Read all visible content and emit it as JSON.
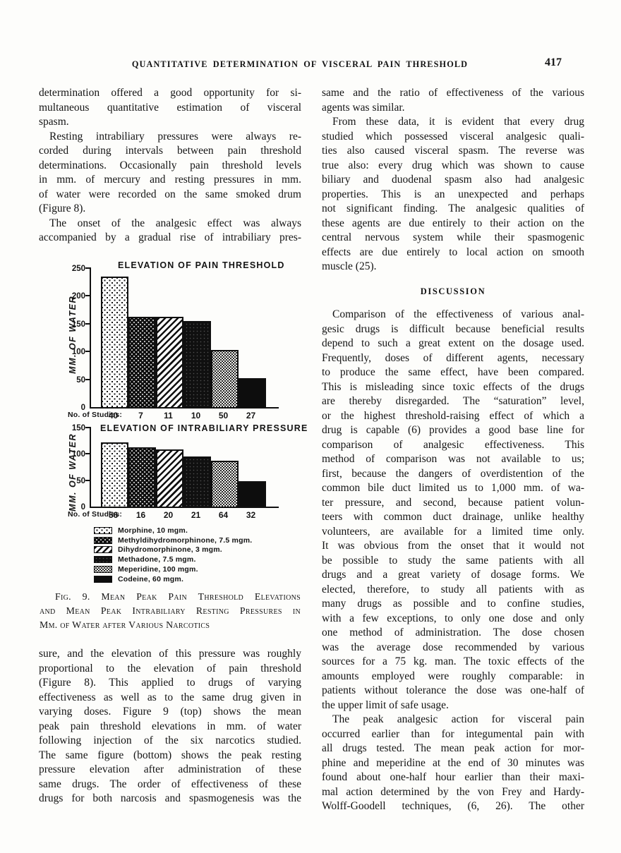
{
  "header": {
    "running_title": "QUANTITATIVE DETERMINATION OF VISCERAL PAIN THRESHOLD",
    "page_number": "417"
  },
  "left_column": {
    "paragraphs_top": [
      {
        "indent": false,
        "justify_last": false,
        "lines": [
          "determination offered a good opportunity for si-",
          "multaneous quantitative estimation of visceral",
          "spasm."
        ]
      },
      {
        "indent": true,
        "justify_last": false,
        "lines": [
          "Resting intrabiliary pressures were always re-",
          "corded during intervals between pain threshold",
          "determinations.  Occasionally pain threshold levels",
          "in mm. of mercury and resting pressures in mm.",
          "of water were recorded on the same smoked drum",
          "(Figure 8)."
        ]
      },
      {
        "indent": true,
        "justify_last": true,
        "lines": [
          "The onset of the analgesic effect was always",
          "accompanied by a gradual rise of intrabiliary pres-"
        ]
      }
    ],
    "paragraphs_bottom": [
      {
        "indent": false,
        "justify_last": true,
        "lines": [
          "sure, and the elevation of this pressure was roughly",
          "proportional to the elevation of pain threshold",
          "(Figure 8).  This applied to drugs of varying",
          "effectiveness as well as to the same drug given in",
          "varying doses.  Figure 9 (top) shows the mean",
          "peak pain threshold elevations in mm. of water",
          "following injection of the six narcotics studied.",
          "The same figure (bottom) shows the peak resting",
          "pressure elevation after administration of these",
          "same drugs.  The order of effectiveness of these",
          "drugs for both narcosis and spasmogenesis was the"
        ]
      }
    ]
  },
  "right_column": {
    "paragraphs_before_heading": [
      {
        "indent": false,
        "justify_last": false,
        "lines": [
          "same and the ratio of effectiveness of the various",
          "agents was similar."
        ]
      },
      {
        "indent": true,
        "justify_last": false,
        "lines": [
          "From these data, it is evident that every drug",
          "studied which possessed visceral analgesic quali-",
          "ties also caused visceral spasm.  The reverse was",
          "true also: every drug which was shown to cause",
          "biliary and duodenal spasm also had analgesic",
          "properties.  This is an unexpected and perhaps",
          "not significant finding.  The analgesic qualities of",
          "these agents are due entirely to their action on the",
          "central nervous system while their spasmogenic",
          "effects are due entirely to local action on smooth",
          "muscle (25)."
        ]
      }
    ],
    "section_heading": "DISCUSSION",
    "paragraphs_after_heading": [
      {
        "indent": true,
        "justify_last": false,
        "lines": [
          "Comparison of the effectiveness of various anal-",
          "gesic drugs is difficult because beneficial results",
          "depend to such a great extent on the dosage used.",
          "Frequently, doses of different agents, necessary",
          "to produce the same effect, have been compared.",
          "This is misleading since toxic effects of the drugs",
          "are thereby disregarded.  The “saturation” level,",
          "or the highest threshold-raising effect of which a",
          "drug is capable (6) provides a good base line for",
          "comparison of analgesic effectiveness.   This",
          "method of comparison was not available to us;",
          "first, because the dangers of overdistention of the",
          "common bile duct limited us to 1,000 mm. of wa-",
          "ter pressure, and second, because patient volun-",
          "teers with common duct drainage, unlike healthy",
          "volunteers, are available for a limited time only.",
          "It was obvious from the onset that it would not",
          "be possible to study the same patients with all",
          "drugs and a great variety of dosage forms.  We",
          "elected, therefore, to study all patients with as",
          "many drugs as possible and to confine studies,",
          "with a few exceptions, to only one dose and only",
          "one method of administration.  The dose chosen",
          "was the average dose recommended by various",
          "sources for a 75 kg. man.  The toxic effects of the",
          "amounts employed were roughly comparable: in",
          "patients without tolerance the dose was one-half of",
          "the upper limit of safe usage."
        ]
      },
      {
        "indent": true,
        "justify_last": true,
        "lines": [
          "The peak analgesic action for visceral pain",
          "occurred earlier than for integumental pain with",
          "all drugs tested.  The mean peak action for mor-",
          "phine and meperidine at the end of 30 minutes was",
          "found about one-half hour earlier than their maxi-",
          "mal action determined by the von Frey and Hardy-",
          "Wolff-Goodell techniques, (6, 26).  The other"
        ]
      }
    ]
  },
  "figure": {
    "caption": [
      {
        "indent": true,
        "justify_last": false,
        "lines": [
          "Fig. 9.  Mean Peak Pain Threshold Elevations",
          "and Mean Peak Intrabiliary Resting Pressures in",
          "Mm. of Water after Various Narcotics"
        ]
      }
    ],
    "legend_items": [
      {
        "label": "Morphine, 10 mgm.",
        "pattern": "stipple-light"
      },
      {
        "label": "Methyldihydromorphinone, 7.5 mgm.",
        "pattern": "stipple-dark"
      },
      {
        "label": "Dihydromorphinone, 3 mgm.",
        "pattern": "diagonal"
      },
      {
        "label": "Methadone, 7.5 mgm.",
        "pattern": "solid-dark"
      },
      {
        "label": "Meperidine, 100 mgm.",
        "pattern": "crosshatch"
      },
      {
        "label": "Codeine, 60 mgm.",
        "pattern": "solid"
      }
    ]
  },
  "chart_data": [
    {
      "type": "bar",
      "title": "ELEVATION OF PAIN THRESHOLD",
      "ylabel": "MM. OF WATER",
      "xlabel": "",
      "ylim": [
        0,
        250
      ],
      "yticks": [
        0,
        50,
        100,
        150,
        200,
        250
      ],
      "grid": false,
      "legend_position": "below-figure",
      "categories": [
        "Morphine, 10 mgm.",
        "Methyldihydromorphinone, 7.5 mgm.",
        "Dihydromorphinone, 3 mgm.",
        "Methadone, 7.5 mgm.",
        "Meperidine, 100 mgm.",
        "Codeine, 60 mgm."
      ],
      "values": [
        235,
        163,
        162,
        155,
        103,
        52
      ],
      "patterns": [
        "stipple-light",
        "stipple-dark",
        "diagonal",
        "solid-dark",
        "crosshatch",
        "solid"
      ],
      "studies_label": "No. of Studies:",
      "studies": [
        40,
        7,
        11,
        10,
        50,
        27
      ]
    },
    {
      "type": "bar",
      "title": "ELEVATION OF INTRABILIARY PRESSURE",
      "ylabel": "MM. OF WATER",
      "xlabel": "",
      "ylim": [
        0,
        150
      ],
      "yticks": [
        0,
        50,
        100,
        150
      ],
      "grid": false,
      "legend_position": "below-figure",
      "categories": [
        "Morphine, 10 mgm.",
        "Methyldihydromorphinone, 7.5 mgm.",
        "Dihydromorphinone, 3 mgm.",
        "Methadone, 7.5 mgm.",
        "Meperidine, 100 mgm.",
        "Codeine, 60 mgm."
      ],
      "values": [
        122,
        112,
        108,
        95,
        87,
        48
      ],
      "patterns": [
        "stipple-light",
        "stipple-dark",
        "diagonal",
        "solid-dark",
        "crosshatch",
        "solid"
      ],
      "studies_label": "No. of Studies:",
      "studies": [
        56,
        16,
        20,
        21,
        64,
        32
      ]
    }
  ],
  "colors": {
    "ink": "#141414",
    "paper": "#fdfdfb"
  }
}
